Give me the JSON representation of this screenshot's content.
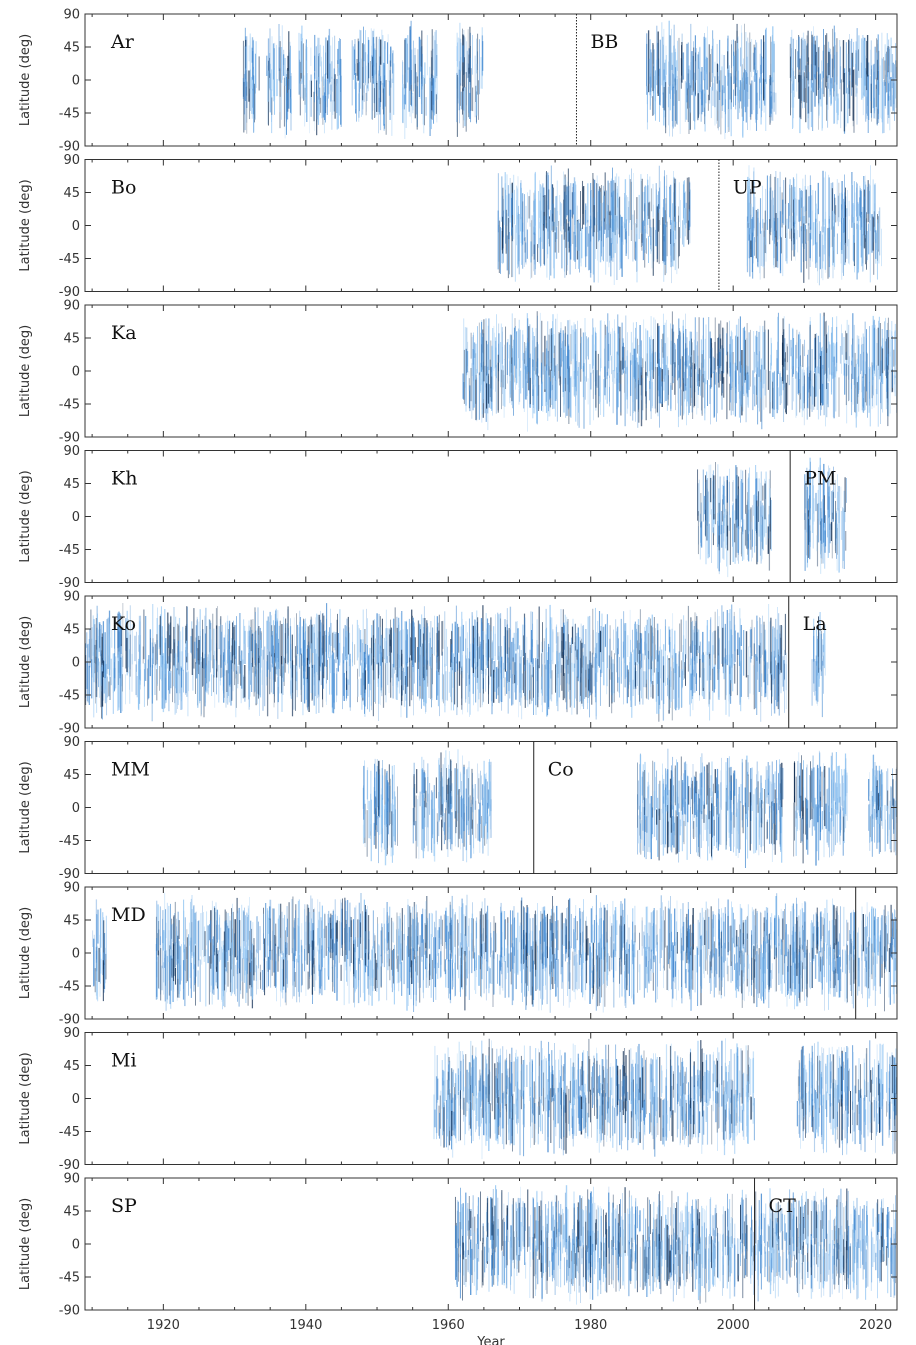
{
  "chart_data": {
    "type": "scatter",
    "xlabel": "Year",
    "ylabel": "Latitude (deg)",
    "xlim": [
      1909,
      2023
    ],
    "ylim": [
      -90,
      90
    ],
    "xticks": [
      1920,
      1940,
      1960,
      1980,
      2000,
      2020
    ],
    "yticks": [
      90,
      45,
      0,
      -45,
      -90
    ],
    "ytick_labels": [
      "90",
      "45",
      "0",
      "-45",
      "-90"
    ],
    "colors": {
      "light": "#8ec3f2",
      "mid": "#3f86cf",
      "dark": "#0c2a50"
    },
    "panels": [
      {
        "datasets": [
          {
            "label": "Ar",
            "coverage": [
              [
                1931,
                1933.5
              ],
              [
                1934.5,
                1938
              ],
              [
                1939,
                1945
              ],
              [
                1946.5,
                1952.5
              ],
              [
                1953.5,
                1958.5
              ],
              [
                1961,
                1965
              ]
            ]
          },
          {
            "label": "BB",
            "coverage": [
              [
                1987.8,
                1994
              ],
              [
                1994,
                2006
              ],
              [
                2008,
                2023
              ]
            ]
          }
        ],
        "dividers": [
          {
            "year": 1978,
            "style": "dotted"
          }
        ]
      },
      {
        "datasets": [
          {
            "label": "Bo",
            "coverage": [
              [
                1967,
                1994
              ]
            ]
          },
          {
            "label": "UP",
            "coverage": [
              [
                2002,
                2021
              ]
            ]
          }
        ],
        "dividers": [
          {
            "year": 1998,
            "style": "dotted"
          }
        ]
      },
      {
        "datasets": [
          {
            "label": "Ka",
            "coverage": [
              [
                1962,
                2023
              ]
            ]
          }
        ],
        "dividers": []
      },
      {
        "datasets": [
          {
            "label": "Kh",
            "coverage": [
              [
                1995,
                2005.5
              ]
            ]
          },
          {
            "label": "PM",
            "coverage": [
              [
                2010,
                2016
              ]
            ]
          }
        ],
        "dividers": [
          {
            "year": 2008,
            "style": "solid"
          }
        ]
      },
      {
        "datasets": [
          {
            "label": "Ko",
            "coverage": [
              [
                1909,
                2007.5
              ]
            ]
          },
          {
            "label": "La",
            "coverage": [
              [
                2011,
                2013
              ]
            ]
          }
        ],
        "dividers": [
          {
            "year": 2007.8,
            "style": "solid"
          }
        ]
      },
      {
        "datasets": [
          {
            "label": "MM",
            "coverage": [
              [
                1948,
                1953
              ],
              [
                1955,
                1966
              ]
            ]
          },
          {
            "label": "Co",
            "coverage": [
              [
                1986.5,
                2007
              ],
              [
                2008.5,
                2016
              ],
              [
                2019,
                2023
              ]
            ]
          }
        ],
        "dividers": [
          {
            "year": 1972,
            "style": "solid"
          }
        ]
      },
      {
        "datasets": [
          {
            "label": "MD",
            "coverage": [
              [
                1910,
                1912
              ],
              [
                1919,
                2023
              ]
            ]
          }
        ],
        "dividers": [
          {
            "year": 2017.2,
            "style": "solid"
          }
        ]
      },
      {
        "datasets": [
          {
            "label": "Mi",
            "coverage": [
              [
                1958,
                2003
              ],
              [
                2009,
                2023
              ]
            ]
          }
        ],
        "dividers": []
      },
      {
        "datasets": [
          {
            "label": "SP",
            "coverage": [
              [
                1961,
                2003
              ]
            ]
          },
          {
            "label": "CT",
            "coverage": [
              [
                2003,
                2023
              ]
            ]
          }
        ],
        "dividers": [
          {
            "year": 2003,
            "style": "solid"
          }
        ]
      }
    ]
  }
}
